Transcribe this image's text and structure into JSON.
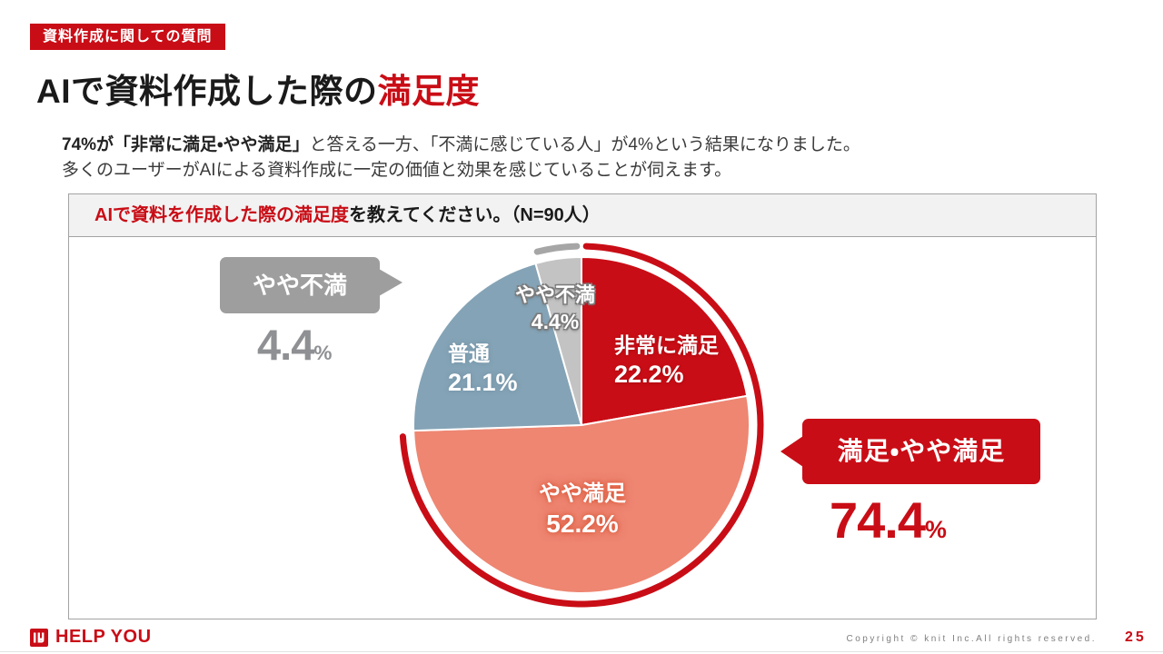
{
  "slide": {
    "badge": "資料作成に関しての質問",
    "title_black": "AIで資料作成した際の",
    "title_red": "満足度",
    "lead_bold": "74%が「非常に満足・やや満足」",
    "lead_rest": "と答える一方、「不満に感じている人」が4%という結果になりました。",
    "lead_line2": "多くのユーザーがAIによる資料作成に一定の価値と効果を感じていることが伺えます。"
  },
  "panel": {
    "question_highlight": "AIで資料を作成した際の満足度",
    "question_rest": "を教えてください。（N=90人）"
  },
  "callout_left": {
    "label": "やや不満",
    "value": "4.4",
    "unit": "%"
  },
  "callout_right": {
    "label": "満足・やや満足",
    "value": "74.4",
    "unit": "%"
  },
  "footer": {
    "brand": "HELP YOU",
    "copyright": "Copyright © knit Inc.All rights reserved.",
    "page_number": "25"
  },
  "colors": {
    "brand_red": "#c90d16",
    "salmon": "#ee8672",
    "blue_gray": "#84a3b6",
    "segment_gray": "#c3c3c3",
    "arc_gray": "#a6a6a6",
    "callout_gray": "#9e9e9e"
  },
  "chart_data": {
    "type": "pie",
    "title": "AIで資料を作成した際の満足度を教えてください。（N=90人）",
    "sample_size": "N=90人",
    "start_angle": "top",
    "direction": "clockwise",
    "segments": [
      {
        "label": "非常に満足",
        "value": 22.2,
        "pct_label": "22.2%",
        "color": "#c90d16"
      },
      {
        "label": "やや満足",
        "value": 52.2,
        "pct_label": "52.2%",
        "color": "#ee8672"
      },
      {
        "label": "普通",
        "value": 21.1,
        "pct_label": "21.1%",
        "color": "#84a3b6"
      },
      {
        "label": "やや不満",
        "value": 4.4,
        "pct_label": "4.4%",
        "color": "#c3c3c3"
      }
    ],
    "highlight_arcs": [
      {
        "label": "満足・やや満足",
        "from_pct": 0,
        "to_pct": 74.4,
        "value_label": "74.4%",
        "color": "#c90d16"
      },
      {
        "label": "やや不満",
        "from_pct": 95.6,
        "to_pct": 100,
        "value_label": "4.4%",
        "color": "#a6a6a6"
      }
    ]
  }
}
